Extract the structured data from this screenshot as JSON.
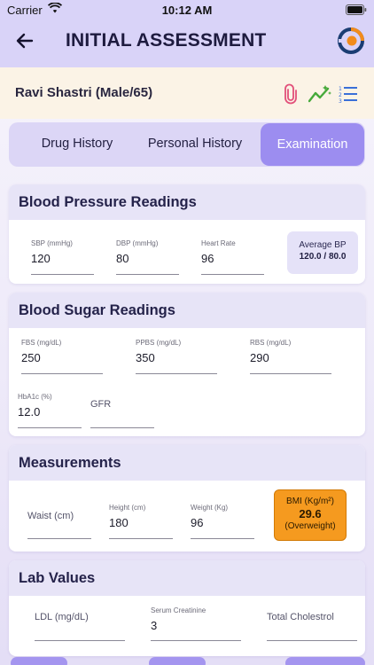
{
  "status_bar": {
    "carrier": "Carrier",
    "time": "10:12 AM"
  },
  "header": {
    "title": "INITIAL ASSESSMENT"
  },
  "patient": {
    "name": "Ravi Shastri (Male/65)"
  },
  "tabs": [
    {
      "label": "Drug History"
    },
    {
      "label": "Personal History"
    },
    {
      "label": "Examination"
    }
  ],
  "blood_pressure": {
    "title": "Blood Pressure Readings",
    "sbp": {
      "label": "SBP (mmHg)",
      "value": "120"
    },
    "dbp": {
      "label": "DBP (mmHg)",
      "value": "80"
    },
    "heart_rate": {
      "label": "Heart Rate",
      "value": "96"
    },
    "average": {
      "label": "Average BP",
      "value": "120.0 / 80.0"
    }
  },
  "blood_sugar": {
    "title": "Blood Sugar Readings",
    "fbs": {
      "label": "FBS (mg/dL)",
      "value": "250"
    },
    "ppbs": {
      "label": "PPBS (mg/dL)",
      "value": "350"
    },
    "rbs": {
      "label": "RBS (mg/dL)",
      "value": "290"
    },
    "hba1c": {
      "label": "HbA1c (%)",
      "value": "12.0"
    },
    "gfr": {
      "placeholder": "GFR"
    }
  },
  "measurements": {
    "title": "Measurements",
    "waist": {
      "placeholder": "Waist (cm)"
    },
    "height": {
      "label": "Height (cm)",
      "value": "180"
    },
    "weight": {
      "label": "Weight (Kg)",
      "value": "96"
    },
    "bmi": {
      "label": "BMI (Kg/m²)",
      "value": "29.6",
      "category": "(Overweight)"
    }
  },
  "lab_values": {
    "title": "Lab Values",
    "ldl": {
      "placeholder": "LDL (mg/dL)"
    },
    "creatinine": {
      "label": "Serum Creatinine",
      "value": "3"
    },
    "cholesterol": {
      "placeholder": "Total Cholestrol"
    }
  },
  "colors": {
    "header_bg": "#d9d3f8",
    "accent": "#9c8df0",
    "patient_bg": "#fbf3e6",
    "bmi_bg": "#f59a1f"
  }
}
